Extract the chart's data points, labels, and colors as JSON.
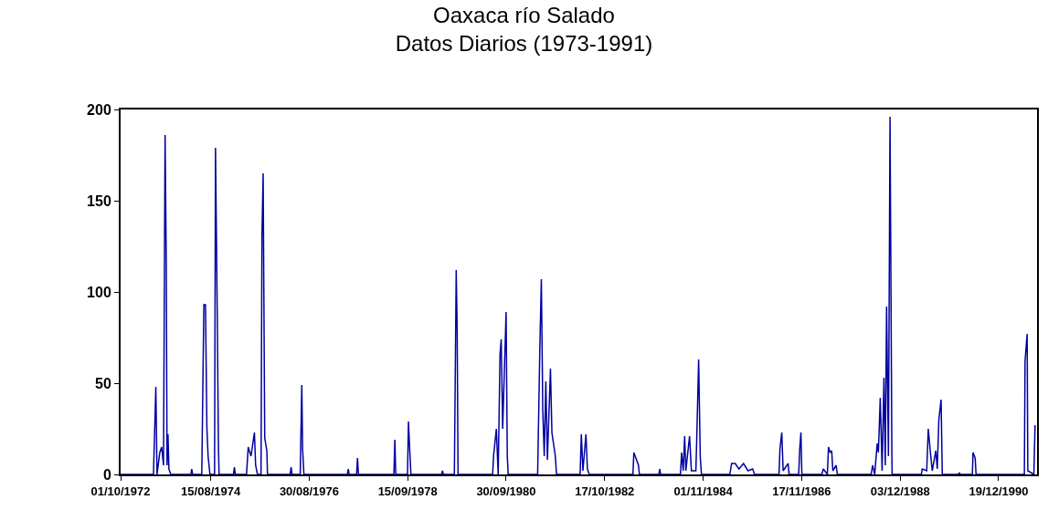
{
  "chart_data": {
    "type": "line",
    "title": "Oaxaca río Salado",
    "subtitle": "Datos Diarios (1973-1991)",
    "xlim": [
      "1972-10-01",
      "1991-10-06"
    ],
    "xticks": [
      {
        "value": "1972-10-01",
        "label": "01/10/1972"
      },
      {
        "value": "1974-08-15",
        "label": "15/08/1974"
      },
      {
        "value": "1976-08-30",
        "label": "30/08/1976"
      },
      {
        "value": "1978-09-15",
        "label": "15/09/1978"
      },
      {
        "value": "1980-09-30",
        "label": "30/09/1980"
      },
      {
        "value": "1982-10-17",
        "label": "17/10/1982"
      },
      {
        "value": "1984-11-01",
        "label": "01/11/1984"
      },
      {
        "value": "1986-11-17",
        "label": "17/11/1986"
      },
      {
        "value": "1988-12-03",
        "label": "03/12/1988"
      },
      {
        "value": "1990-12-19",
        "label": "19/12/1990"
      }
    ],
    "ylim": [
      0,
      200
    ],
    "yticks": [
      0,
      50,
      100,
      150,
      200
    ],
    "marker": "none",
    "line_style": "solid",
    "series": [
      {
        "color": "#0000a0",
        "x": [
          "1972-10-01",
          "1973-06-07",
          "1973-06-25",
          "1973-07-04",
          "1973-07-25",
          "1973-08-08",
          "1973-08-22",
          "1973-09-03",
          "1973-09-12",
          "1973-09-18",
          "1973-09-25",
          "1973-10-02",
          "1973-10-16",
          "1974-03-17",
          "1974-03-24",
          "1974-03-31",
          "1974-06-08",
          "1974-06-24",
          "1974-07-06",
          "1974-07-17",
          "1974-07-26",
          "1974-08-09",
          "1974-09-13",
          "1974-09-20",
          "1974-10-03",
          "1974-10-12",
          "1974-10-17",
          "1975-02-03",
          "1975-02-10",
          "1975-02-17",
          "1975-05-13",
          "1975-05-26",
          "1975-06-16",
          "1975-07-12",
          "1975-07-21",
          "1975-08-04",
          "1975-08-31",
          "1975-09-07",
          "1975-09-16",
          "1975-09-28",
          "1975-10-14",
          "1975-10-19",
          "1976-04-08",
          "1976-04-15",
          "1976-04-22",
          "1976-06-23",
          "1976-07-05",
          "1976-07-11",
          "1976-07-21",
          "1977-06-15",
          "1977-06-22",
          "1977-06-29",
          "1977-08-24",
          "1977-08-31",
          "1977-09-07",
          "1978-06-03",
          "1978-06-10",
          "1978-06-17",
          "1978-09-14",
          "1978-09-21",
          "1978-10-03",
          "1978-10-10",
          "1979-05-30",
          "1979-06-06",
          "1979-06-13",
          "1979-09-04",
          "1979-09-18",
          "1979-09-25",
          "1979-10-02",
          "1980-06-20",
          "1980-06-27",
          "1980-07-18",
          "1980-08-01",
          "1980-08-15",
          "1980-08-24",
          "1980-09-04",
          "1980-09-30",
          "1980-10-09",
          "1980-10-16",
          "1981-05-27",
          "1981-06-12",
          "1981-06-24",
          "1981-07-05",
          "1981-07-16",
          "1981-07-28",
          "1981-08-09",
          "1981-09-01",
          "1981-09-12",
          "1981-10-08",
          "1981-10-17",
          "1982-04-14",
          "1982-04-23",
          "1982-05-05",
          "1982-05-28",
          "1982-06-08",
          "1982-06-22",
          "1983-05-19",
          "1983-05-26",
          "1983-06-30",
          "1983-07-07",
          "1983-12-01",
          "1983-12-08",
          "1983-12-15",
          "1984-05-13",
          "1984-05-22",
          "1984-06-03",
          "1984-06-14",
          "1984-06-23",
          "1984-07-21",
          "1984-08-04",
          "1984-09-07",
          "1984-09-14",
          "1984-09-28",
          "1984-10-10",
          "1984-10-19",
          "1985-05-22",
          "1985-06-05",
          "1985-07-02",
          "1985-07-30",
          "1985-09-03",
          "1985-10-07",
          "1985-11-11",
          "1985-11-26",
          "1986-05-30",
          "1986-06-06",
          "1986-06-20",
          "1986-06-30",
          "1986-08-07",
          "1986-08-14",
          "1986-10-26",
          "1986-11-03",
          "1986-11-12",
          "1986-11-19",
          "1987-04-19",
          "1987-05-01",
          "1987-05-31",
          "1987-06-09",
          "1987-06-21",
          "1987-07-03",
          "1987-07-12",
          "1987-08-06",
          "1987-08-15",
          "1988-04-27",
          "1988-05-08",
          "1988-05-24",
          "1988-06-12",
          "1988-06-21",
          "1988-07-05",
          "1988-07-19",
          "1988-08-02",
          "1988-08-12",
          "1988-08-22",
          "1988-09-05",
          "1988-09-17",
          "1988-10-01",
          "1988-10-03",
          "1989-05-12",
          "1989-05-19",
          "1989-06-22",
          "1989-07-04",
          "1989-07-20",
          "1989-08-03",
          "1989-08-30",
          "1989-09-10",
          "1989-09-22",
          "1989-10-09",
          "1989-10-18",
          "1990-02-17",
          "1990-02-24",
          "1990-03-03",
          "1990-06-03",
          "1990-06-08",
          "1990-06-24",
          "1990-07-01",
          "1991-07-02",
          "1991-07-07",
          "1991-07-23",
          "1991-07-28",
          "1991-09-12",
          "1991-09-21"
        ],
        "values": [
          0,
          0,
          48,
          0,
          12,
          15,
          5,
          186,
          115,
          5,
          22,
          3,
          0,
          0,
          3,
          0,
          0,
          93,
          93,
          25,
          10,
          0,
          0,
          179,
          90,
          17,
          0,
          0,
          4,
          0,
          0,
          15,
          10,
          23,
          5,
          0,
          0,
          130,
          165,
          20,
          13,
          0,
          0,
          4,
          0,
          0,
          49,
          14,
          0,
          0,
          3,
          0,
          0,
          9,
          0,
          0,
          19,
          0,
          0,
          29,
          10,
          0,
          0,
          2,
          0,
          0,
          112,
          80,
          0,
          0,
          10,
          25,
          0,
          66,
          74,
          25,
          89,
          10,
          0,
          0,
          67,
          107,
          35,
          10,
          51,
          8,
          58,
          23,
          10,
          0,
          0,
          22,
          2,
          22,
          3,
          0,
          0,
          12,
          5,
          0,
          0,
          3,
          0,
          0,
          12,
          2,
          21,
          2,
          21,
          2,
          2,
          21,
          63,
          10,
          0,
          0,
          6,
          6,
          3,
          6,
          2,
          3,
          0,
          0,
          14,
          23,
          2,
          6,
          0,
          0,
          14,
          23,
          0,
          0,
          3,
          0,
          15,
          12,
          13,
          2,
          5,
          0,
          0,
          5,
          0,
          17,
          12,
          42,
          2,
          53,
          5,
          92,
          10,
          196,
          12,
          0,
          0,
          3,
          2,
          25,
          12,
          2,
          13,
          3,
          30,
          41,
          0,
          0,
          1,
          0,
          0,
          12,
          9,
          0,
          0,
          62,
          77,
          2,
          0,
          27
        ]
      }
    ]
  }
}
